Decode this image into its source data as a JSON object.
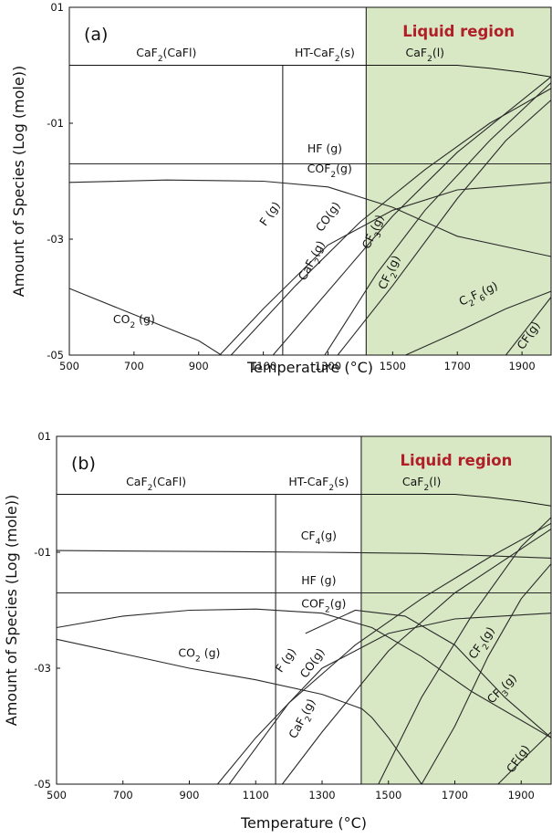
{
  "chart_data": [
    {
      "type": "line",
      "panel_label": "(a)",
      "region_label": "Liquid region",
      "region_color": "#d9e8c4",
      "xlabel": "Temperature (°C)",
      "ylabel": "Amount of Species (Log (mole))",
      "xlim": [
        500,
        1990
      ],
      "ylim": [
        -5,
        1
      ],
      "liquid_start": 1418,
      "phase_boundary": 1160,
      "x_ticks": [
        {
          "v": 500,
          "t": "500"
        },
        {
          "v": 700,
          "t": "700"
        },
        {
          "v": 900,
          "t": "900"
        },
        {
          "v": 1100,
          "t": "1100"
        },
        {
          "v": 1300,
          "t": "1300"
        },
        {
          "v": 1500,
          "t": "1500"
        },
        {
          "v": 1700,
          "t": "1700"
        },
        {
          "v": 1900,
          "t": "1900"
        }
      ],
      "y_ticks": [
        {
          "v": 1,
          "t": "01"
        },
        {
          "v": -1,
          "t": "-01"
        },
        {
          "v": -3,
          "t": "-03"
        },
        {
          "v": -5,
          "t": "-05"
        }
      ],
      "phase_labels": [
        {
          "text": "CaF2(CaFl)",
          "x": 800,
          "y": 0.15
        },
        {
          "text": "HT-CaF2(s)",
          "x": 1290,
          "y": 0.15
        },
        {
          "text": "CaF2(l)",
          "x": 1600,
          "y": 0.15
        }
      ],
      "species_labels": [
        {
          "text": "HF (g)",
          "x": 1290,
          "y": -1.5,
          "rot": 0
        },
        {
          "text": "COF2(g)",
          "x": 1305,
          "y": -1.85,
          "rot": 0
        },
        {
          "text": "F (g)",
          "x": 1130,
          "y": -2.6,
          "rot": -55
        },
        {
          "text": "CO(g)",
          "x": 1310,
          "y": -2.65,
          "rot": -55
        },
        {
          "text": "CaF2(g)",
          "x": 1260,
          "y": -3.4,
          "rot": -62
        },
        {
          "text": "CF3(g)",
          "x": 1450,
          "y": -2.9,
          "rot": -65
        },
        {
          "text": "CF2(g)",
          "x": 1500,
          "y": -3.6,
          "rot": -65
        },
        {
          "text": "C2F6(g)",
          "x": 1770,
          "y": -4.0,
          "rot": -25
        },
        {
          "text": "CF(g)",
          "x": 1930,
          "y": -4.7,
          "rot": -55
        },
        {
          "text": "CO2 (g)",
          "x": 700,
          "y": -4.45,
          "rot": 0
        }
      ],
      "series": [
        {
          "x": [
            500,
            1700,
            1800,
            1900,
            1990
          ],
          "y": [
            0,
            0,
            -0.05,
            -0.12,
            -0.2
          ]
        },
        {
          "x": [
            500,
            1990
          ],
          "y": [
            -1.7,
            -1.7
          ]
        },
        {
          "x": [
            500,
            800,
            1100,
            1300,
            1500,
            1700,
            1990
          ],
          "y": [
            -2.02,
            -1.98,
            -2.0,
            -2.1,
            -2.45,
            -2.95,
            -3.3
          ]
        },
        {
          "x": [
            500,
            700,
            900,
            970
          ],
          "y": [
            -3.85,
            -4.3,
            -4.75,
            -5.0
          ]
        },
        {
          "x": [
            965,
            1100,
            1300,
            1500,
            1700,
            1990
          ],
          "y": [
            -5.0,
            -4.2,
            -3.1,
            -2.5,
            -2.15,
            -2.02
          ]
        },
        {
          "x": [
            1000,
            1200,
            1400,
            1600,
            1800,
            1990
          ],
          "y": [
            -5.0,
            -3.8,
            -2.7,
            -1.8,
            -1.0,
            -0.4
          ]
        },
        {
          "x": [
            1130,
            1300,
            1500,
            1700,
            1990
          ],
          "y": [
            -5.0,
            -3.9,
            -2.6,
            -1.5,
            -0.2
          ]
        },
        {
          "x": [
            1290,
            1450,
            1600,
            1800,
            1990
          ],
          "y": [
            -5.0,
            -3.6,
            -2.5,
            -1.3,
            -0.3
          ]
        },
        {
          "x": [
            1330,
            1500,
            1700,
            1850,
            1990
          ],
          "y": [
            -5.0,
            -3.8,
            -2.3,
            -1.3,
            -0.6
          ]
        },
        {
          "x": [
            1540,
            1700,
            1850,
            1990
          ],
          "y": [
            -5.0,
            -4.6,
            -4.2,
            -3.9
          ]
        },
        {
          "x": [
            1850,
            1920,
            1990
          ],
          "y": [
            -5.0,
            -4.5,
            -4.0
          ]
        }
      ]
    },
    {
      "type": "line",
      "panel_label": "(b)",
      "region_label": "Liquid region",
      "region_color": "#d9e8c4",
      "xlabel": "Temperature (°C)",
      "ylabel": "Amount of Species (Log (mole))",
      "xlim": [
        500,
        1990
      ],
      "ylim": [
        -5,
        1
      ],
      "liquid_start": 1418,
      "phase_boundary": 1160,
      "x_ticks": [
        {
          "v": 500,
          "t": "500"
        },
        {
          "v": 700,
          "t": "700"
        },
        {
          "v": 900,
          "t": "900"
        },
        {
          "v": 1100,
          "t": "1100"
        },
        {
          "v": 1300,
          "t": "1300"
        },
        {
          "v": 1500,
          "t": "1500"
        },
        {
          "v": 1700,
          "t": "1700"
        },
        {
          "v": 1900,
          "t": "1900"
        }
      ],
      "y_ticks": [
        {
          "v": 1,
          "t": "01"
        },
        {
          "v": -1,
          "t": "-01"
        },
        {
          "v": -3,
          "t": "-03"
        },
        {
          "v": -5,
          "t": "-05"
        }
      ],
      "phase_labels": [
        {
          "text": "CaF2(CaFl)",
          "x": 800,
          "y": 0.15
        },
        {
          "text": "HT-CaF2(s)",
          "x": 1290,
          "y": 0.15
        },
        {
          "text": "CaF2(l)",
          "x": 1600,
          "y": 0.15
        }
      ],
      "species_labels": [
        {
          "text": "CF4(g)",
          "x": 1290,
          "y": -0.78,
          "rot": 0
        },
        {
          "text": "HF (g)",
          "x": 1290,
          "y": -1.55,
          "rot": 0
        },
        {
          "text": "COF2(g)",
          "x": 1305,
          "y": -1.95,
          "rot": 0
        },
        {
          "text": "CO2 (g)",
          "x": 930,
          "y": -2.8,
          "rot": 0
        },
        {
          "text": "F (g)",
          "x": 1200,
          "y": -2.9,
          "rot": -55
        },
        {
          "text": "CO(g)",
          "x": 1280,
          "y": -2.95,
          "rot": -55
        },
        {
          "text": "CaF2(g)",
          "x": 1250,
          "y": -3.9,
          "rot": -62
        },
        {
          "text": "CF2(g)",
          "x": 1790,
          "y": -2.6,
          "rot": -55
        },
        {
          "text": "CF3(g)",
          "x": 1850,
          "y": -3.4,
          "rot": -45
        },
        {
          "text": "CF(g)",
          "x": 1900,
          "y": -4.6,
          "rot": -55
        }
      ],
      "series": [
        {
          "x": [
            500,
            1700,
            1800,
            1900,
            1990
          ],
          "y": [
            0,
            0,
            -0.05,
            -0.12,
            -0.2
          ]
        },
        {
          "x": [
            500,
            1300,
            1600,
            1800,
            1990
          ],
          "y": [
            -0.97,
            -1.0,
            -1.02,
            -1.06,
            -1.1
          ]
        },
        {
          "x": [
            500,
            1990
          ],
          "y": [
            -1.7,
            -1.7
          ]
        },
        {
          "x": [
            500,
            700,
            900,
            1100,
            1300,
            1450,
            1600,
            1750,
            1900,
            1990
          ],
          "y": [
            -2.3,
            -2.1,
            -2.0,
            -1.98,
            -2.05,
            -2.3,
            -2.8,
            -3.4,
            -3.9,
            -4.2
          ]
        },
        {
          "x": [
            500,
            700,
            900,
            1100,
            1300,
            1420,
            1450,
            1500,
            1600
          ],
          "y": [
            -2.5,
            -2.75,
            -3.0,
            -3.2,
            -3.45,
            -3.7,
            -3.85,
            -4.2,
            -5.0
          ]
        },
        {
          "x": [
            985,
            1100,
            1300,
            1500,
            1700,
            1990
          ],
          "y": [
            -5.0,
            -4.2,
            -3.0,
            -2.4,
            -2.15,
            -2.05
          ]
        },
        {
          "x": [
            1020,
            1200,
            1400,
            1600,
            1800,
            1990
          ],
          "y": [
            -5.0,
            -3.6,
            -2.6,
            -1.8,
            -1.1,
            -0.5
          ]
        },
        {
          "x": [
            1180,
            1300,
            1500,
            1700,
            1990
          ],
          "y": [
            -5.0,
            -4.1,
            -2.7,
            -1.7,
            -0.6
          ]
        },
        {
          "x": [
            1470,
            1600,
            1750,
            1900,
            1990
          ],
          "y": [
            -5.0,
            -3.5,
            -2.1,
            -0.9,
            -0.4
          ]
        },
        {
          "x": [
            1600,
            1700,
            1800,
            1900,
            1990
          ],
          "y": [
            -5.0,
            -4.0,
            -2.8,
            -1.8,
            -1.2
          ]
        },
        {
          "x": [
            1250,
            1400,
            1550,
            1700,
            1850,
            1990
          ],
          "y": [
            -2.4,
            -2.0,
            -2.1,
            -2.6,
            -3.5,
            -4.2
          ]
        },
        {
          "x": [
            1830,
            1900,
            1990
          ],
          "y": [
            -5.0,
            -4.6,
            -4.1
          ]
        }
      ]
    }
  ]
}
